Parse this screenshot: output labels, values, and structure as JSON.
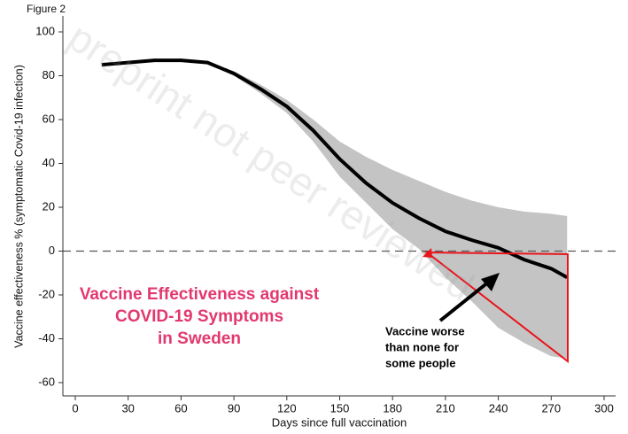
{
  "chart_data": {
    "type": "line",
    "figure_label": "Figure 2",
    "xlabel": "Days since full vaccination",
    "ylabel": "Vaccine effectiveness % (symptomatic Covid-19 infection)",
    "x": [
      15,
      30,
      45,
      60,
      75,
      90,
      105,
      120,
      135,
      150,
      165,
      180,
      195,
      210,
      225,
      240,
      255,
      270,
      279
    ],
    "series": [
      {
        "color": "#000000",
        "values": [
          85,
          86,
          87,
          87,
          86,
          81,
          74,
          66,
          55,
          42,
          31,
          22,
          15,
          9,
          5,
          1.5,
          -4,
          -8,
          -12
        ]
      }
    ],
    "band": {
      "color": "#c4c4c4",
      "upper": [
        85,
        86,
        87,
        87,
        86,
        82,
        76,
        69,
        60,
        50,
        43,
        37,
        32,
        27,
        23,
        20,
        18,
        17,
        16
      ],
      "lower": [
        85,
        86,
        87,
        87,
        86,
        80,
        72,
        63,
        50,
        34,
        22,
        10,
        1,
        -12,
        -23,
        -35,
        -42,
        -48,
        -49
      ]
    },
    "hline": 0,
    "xlim": [
      0,
      300
    ],
    "xticks": [
      0,
      30,
      60,
      90,
      120,
      150,
      180,
      210,
      240,
      270,
      300
    ],
    "ylim": [
      -60,
      100
    ],
    "yticks": [
      -60,
      -40,
      -20,
      0,
      20,
      40,
      60,
      80,
      100
    ],
    "annotation_title": [
      "Vaccine Effectiveness  against",
      "COVID-19 Symptoms",
      "in Sweden"
    ],
    "annotation_note": [
      "Vaccine worse",
      "than none for",
      "some people"
    ],
    "watermark": "preprint not peer reviewed"
  }
}
